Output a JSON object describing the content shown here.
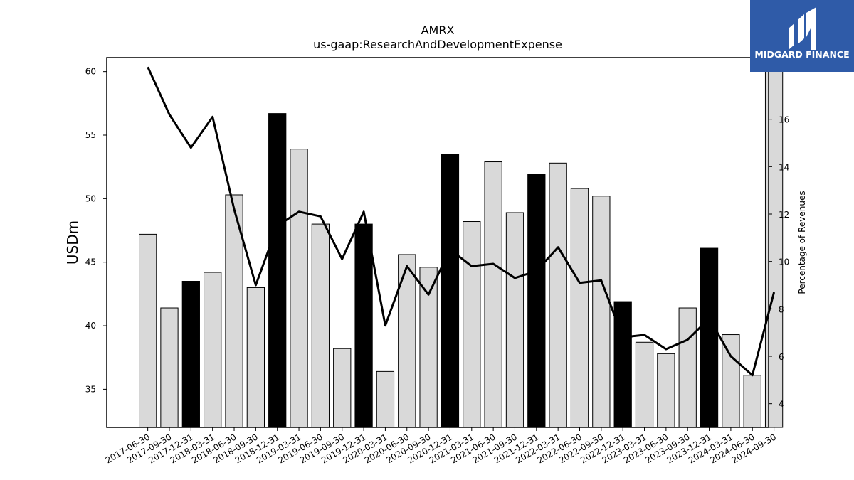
{
  "chart_data": {
    "type": "bar+line",
    "title": "AMRX",
    "subtitle": "us-gaap:ResearchAndDevelopmentExpense",
    "ylabel_left": "USDm",
    "ylabel_right": "Percentage of Revenues",
    "categories": [
      "2017-06-30",
      "2017-09-30",
      "2017-12-31",
      "2018-03-31",
      "2018-06-30",
      "2018-09-30",
      "2018-12-31",
      "2019-03-31",
      "2019-06-30",
      "2019-09-30",
      "2019-12-31",
      "2020-03-31",
      "2020-06-30",
      "2020-09-30",
      "2020-12-31",
      "2021-03-31",
      "2021-06-30",
      "2021-09-30",
      "2021-12-31",
      "2022-03-31",
      "2022-06-30",
      "2022-09-30",
      "2022-12-31",
      "2023-03-31",
      "2023-06-30",
      "2023-09-30",
      "2023-12-31",
      "2024-03-31",
      "2024-06-30",
      "2024-09-30"
    ],
    "bar_series": {
      "values": [
        47.2,
        41.4,
        43.5,
        44.2,
        50.3,
        43.0,
        56.7,
        53.9,
        48.0,
        38.2,
        48.0,
        36.4,
        45.6,
        44.6,
        53.5,
        48.2,
        52.9,
        48.9,
        51.9,
        52.8,
        50.8,
        50.2,
        41.9,
        38.7,
        37.8,
        41.4,
        46.1,
        39.3,
        36.1,
        61.1
      ],
      "highlight": [
        false,
        false,
        true,
        false,
        false,
        false,
        true,
        false,
        false,
        false,
        true,
        false,
        false,
        false,
        true,
        false,
        false,
        false,
        true,
        false,
        false,
        false,
        true,
        false,
        false,
        false,
        true,
        false,
        false,
        false
      ],
      "color": "#d9d9d9",
      "highlight_color": "#000000"
    },
    "line_series": {
      "values": [
        18.2,
        16.2,
        14.8,
        16.1,
        12.2,
        9.0,
        11.5,
        12.1,
        11.9,
        10.1,
        12.1,
        7.3,
        9.8,
        8.6,
        10.5,
        9.8,
        9.9,
        9.3,
        9.6,
        10.6,
        9.1,
        9.2,
        6.8,
        6.9,
        6.3,
        6.7,
        7.6,
        6.0,
        5.2,
        8.7
      ],
      "color": "#000000"
    },
    "ylim_left": [
      32,
      61.1
    ],
    "ylim_right": [
      3,
      18.6
    ],
    "yticks_left": [
      35,
      40,
      45,
      50,
      55,
      60
    ],
    "yticks_right": [
      4,
      6,
      8,
      10,
      12,
      14,
      16
    ],
    "grid": false
  },
  "brand": {
    "name": "MIDGARD FINANCE",
    "color": "#2f5ba8"
  }
}
